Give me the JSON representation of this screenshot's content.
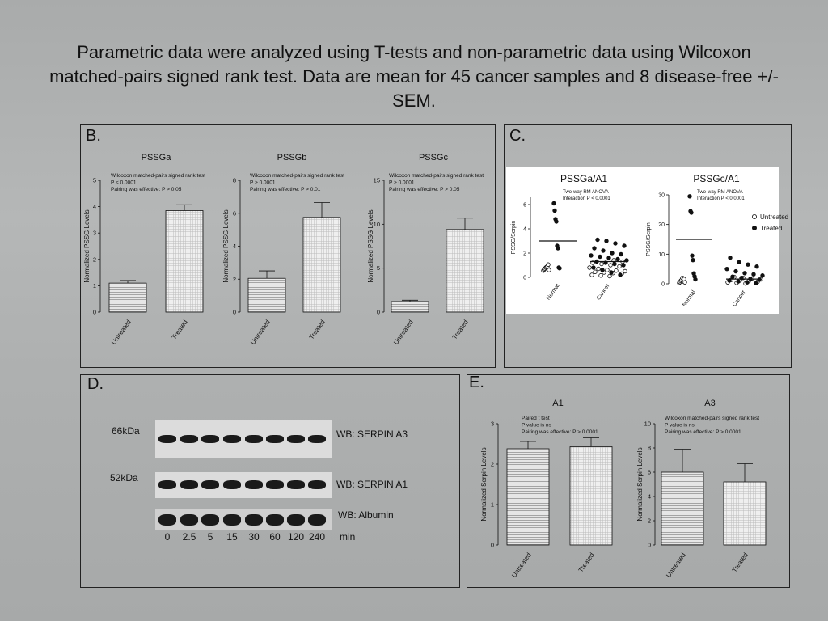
{
  "header": {
    "title": "Parametric data were analyzed using T-tests and non-parametric data using Wilcoxon matched-pairs signed rank test. Data are mean for 45 cancer samples and 8 disease-free +/- SEM."
  },
  "panels": {
    "b": {
      "label": "B."
    },
    "c": {
      "label": "C."
    },
    "d": {
      "label": "D."
    },
    "e": {
      "label": "E."
    }
  },
  "chart_data": [
    {
      "id": "pssga",
      "type": "bar",
      "title": "PSSGa",
      "ylabel": "Normalized PSSG Levels",
      "categories": [
        "Untreated",
        "Treated"
      ],
      "values": [
        1.1,
        3.85
      ],
      "errors": [
        0.1,
        0.22
      ],
      "ylim": [
        0,
        5
      ],
      "yticks": [
        "0",
        "1",
        "2",
        "3",
        "4",
        "5"
      ],
      "annotations": [
        "Wilcoxon matched-pairs signed rank test",
        "P < 0.0001",
        "Pairing was effective: P > 0.05"
      ]
    },
    {
      "id": "pssgb",
      "type": "bar",
      "title": "PSSGb",
      "ylabel": "Normalized PSSG Levels",
      "categories": [
        "Untreated",
        "Treated"
      ],
      "values": [
        2.05,
        5.75
      ],
      "errors": [
        0.45,
        0.9
      ],
      "ylim": [
        0,
        8
      ],
      "yticks": [
        "0",
        "2",
        "4",
        "6",
        "8"
      ],
      "annotations": [
        "Wilcoxon matched-pairs signed rank test",
        "P > 0.0001",
        "Pairing was effective: P > 0.01"
      ]
    },
    {
      "id": "pssgc",
      "type": "bar",
      "title": "PSSGc",
      "ylabel": "Normalized PSSG Levels",
      "categories": [
        "Untreated",
        "Treated"
      ],
      "values": [
        1.2,
        9.4
      ],
      "errors": [
        0.15,
        1.3
      ],
      "ylim": [
        0,
        15
      ],
      "yticks": [
        "0",
        "5",
        "10",
        "15"
      ],
      "annotations": [
        "Wilcoxon matched-pairs signed rank test",
        "P > 0.0001",
        "Pairing was effective: P > 0.05"
      ]
    },
    {
      "id": "pssga_a1",
      "type": "scatter",
      "title": "PSSGa/A1",
      "ylabel": "PSSG/Serpin",
      "categories": [
        "Normal",
        "Cancer"
      ],
      "ylim": [
        0,
        6.6
      ],
      "yticks": [
        "0",
        "2",
        "4",
        "6"
      ],
      "annotations": [
        "Two-way RM ANOVA",
        "Interaction P < 0.0001"
      ],
      "series": [
        {
          "name": "Untreated",
          "group": "Normal",
          "values": [
            0.55,
            0.65,
            0.72,
            0.8,
            0.85,
            0.9,
            1.05,
            0.6
          ]
        },
        {
          "name": "Treated",
          "group": "Normal",
          "values": [
            6.1,
            5.5,
            4.8,
            4.6,
            2.6,
            2.4,
            0.8,
            0.75
          ]
        },
        {
          "name": "Untreated",
          "group": "Cancer",
          "values": [
            0.1,
            0.15,
            0.2,
            0.3,
            0.35,
            0.4,
            0.45,
            0.5,
            0.55,
            0.6,
            0.7,
            0.8,
            0.9,
            1.0,
            1.1,
            1.2,
            1.3,
            1.4
          ]
        },
        {
          "name": "Treated",
          "group": "Cancer",
          "values": [
            0.2,
            0.4,
            0.6,
            0.8,
            1.0,
            1.1,
            1.2,
            1.3,
            1.4,
            1.5,
            1.6,
            1.7,
            1.8,
            1.9,
            2.0,
            2.2,
            2.4,
            2.6,
            2.8,
            3.0,
            3.1
          ]
        }
      ],
      "means": [
        3.0,
        1.3
      ]
    },
    {
      "id": "pssgc_a1",
      "type": "scatter",
      "title": "PSSGc/A1",
      "ylabel": "PSSG/Serpin",
      "categories": [
        "Normal",
        "Cancer"
      ],
      "ylim": [
        0,
        30
      ],
      "yticks": [
        "0",
        "10",
        "20",
        "30"
      ],
      "annotations": [
        "Two-way RM ANOVA",
        "Interaction P < 0.0001"
      ],
      "series": [
        {
          "name": "Untreated",
          "group": "Normal",
          "values": [
            0.3,
            0.6,
            1.0,
            1.3,
            2.0,
            0.8,
            1.6,
            0.5
          ]
        },
        {
          "name": "Treated",
          "group": "Normal",
          "values": [
            29.5,
            24.5,
            24.0,
            9.5,
            8.0,
            3.5,
            2.5,
            1.5
          ]
        },
        {
          "name": "Untreated",
          "group": "Cancer",
          "values": [
            0.1,
            0.3,
            0.5,
            0.7,
            0.9,
            1.1,
            1.3,
            1.5,
            1.8,
            2.0,
            2.3
          ]
        },
        {
          "name": "Treated",
          "group": "Cancer",
          "values": [
            0.2,
            0.5,
            0.8,
            1.1,
            1.4,
            1.7,
            2.0,
            2.4,
            2.8,
            3.2,
            3.6,
            4.2,
            5.0,
            5.8,
            6.5,
            7.3,
            8.8
          ]
        }
      ],
      "means": [
        15.0,
        1.6
      ]
    },
    {
      "id": "a1",
      "type": "bar",
      "title": "A1",
      "ylabel": "Normalized Serpin Levels",
      "categories": [
        "Untreated",
        "Treated"
      ],
      "values": [
        2.38,
        2.43
      ],
      "errors": [
        0.18,
        0.22
      ],
      "ylim": [
        0,
        3
      ],
      "yticks": [
        "0",
        "1",
        "2",
        "3"
      ],
      "annotations": [
        "Paired t test",
        "P value is ns",
        "Pairing was effective: P > 0.0001"
      ]
    },
    {
      "id": "a3",
      "type": "bar",
      "title": "A3",
      "ylabel": "Normalized Serpin Levels",
      "categories": [
        "Untreated",
        "Treated"
      ],
      "values": [
        6.0,
        5.2
      ],
      "errors": [
        1.9,
        1.5
      ],
      "ylim": [
        0,
        10
      ],
      "yticks": [
        "0",
        "2",
        "4",
        "6",
        "8",
        "10"
      ],
      "annotations": [
        "Wilcoxon matched-pairs signed rank test",
        "P value is ns",
        "Pairing was effective: P > 0.0001"
      ]
    }
  ],
  "legend": {
    "untreated": "Untreated",
    "treated": "Treated"
  },
  "blot": {
    "markers": [
      "66kDa",
      "52kDa"
    ],
    "labels": [
      "WB: SERPIN A3",
      "WB: SERPIN A1",
      "WB: Albumin"
    ],
    "timepoints": [
      "0",
      "2.5",
      "5",
      "15",
      "30",
      "60",
      "120",
      "240"
    ],
    "time_unit": "min"
  }
}
